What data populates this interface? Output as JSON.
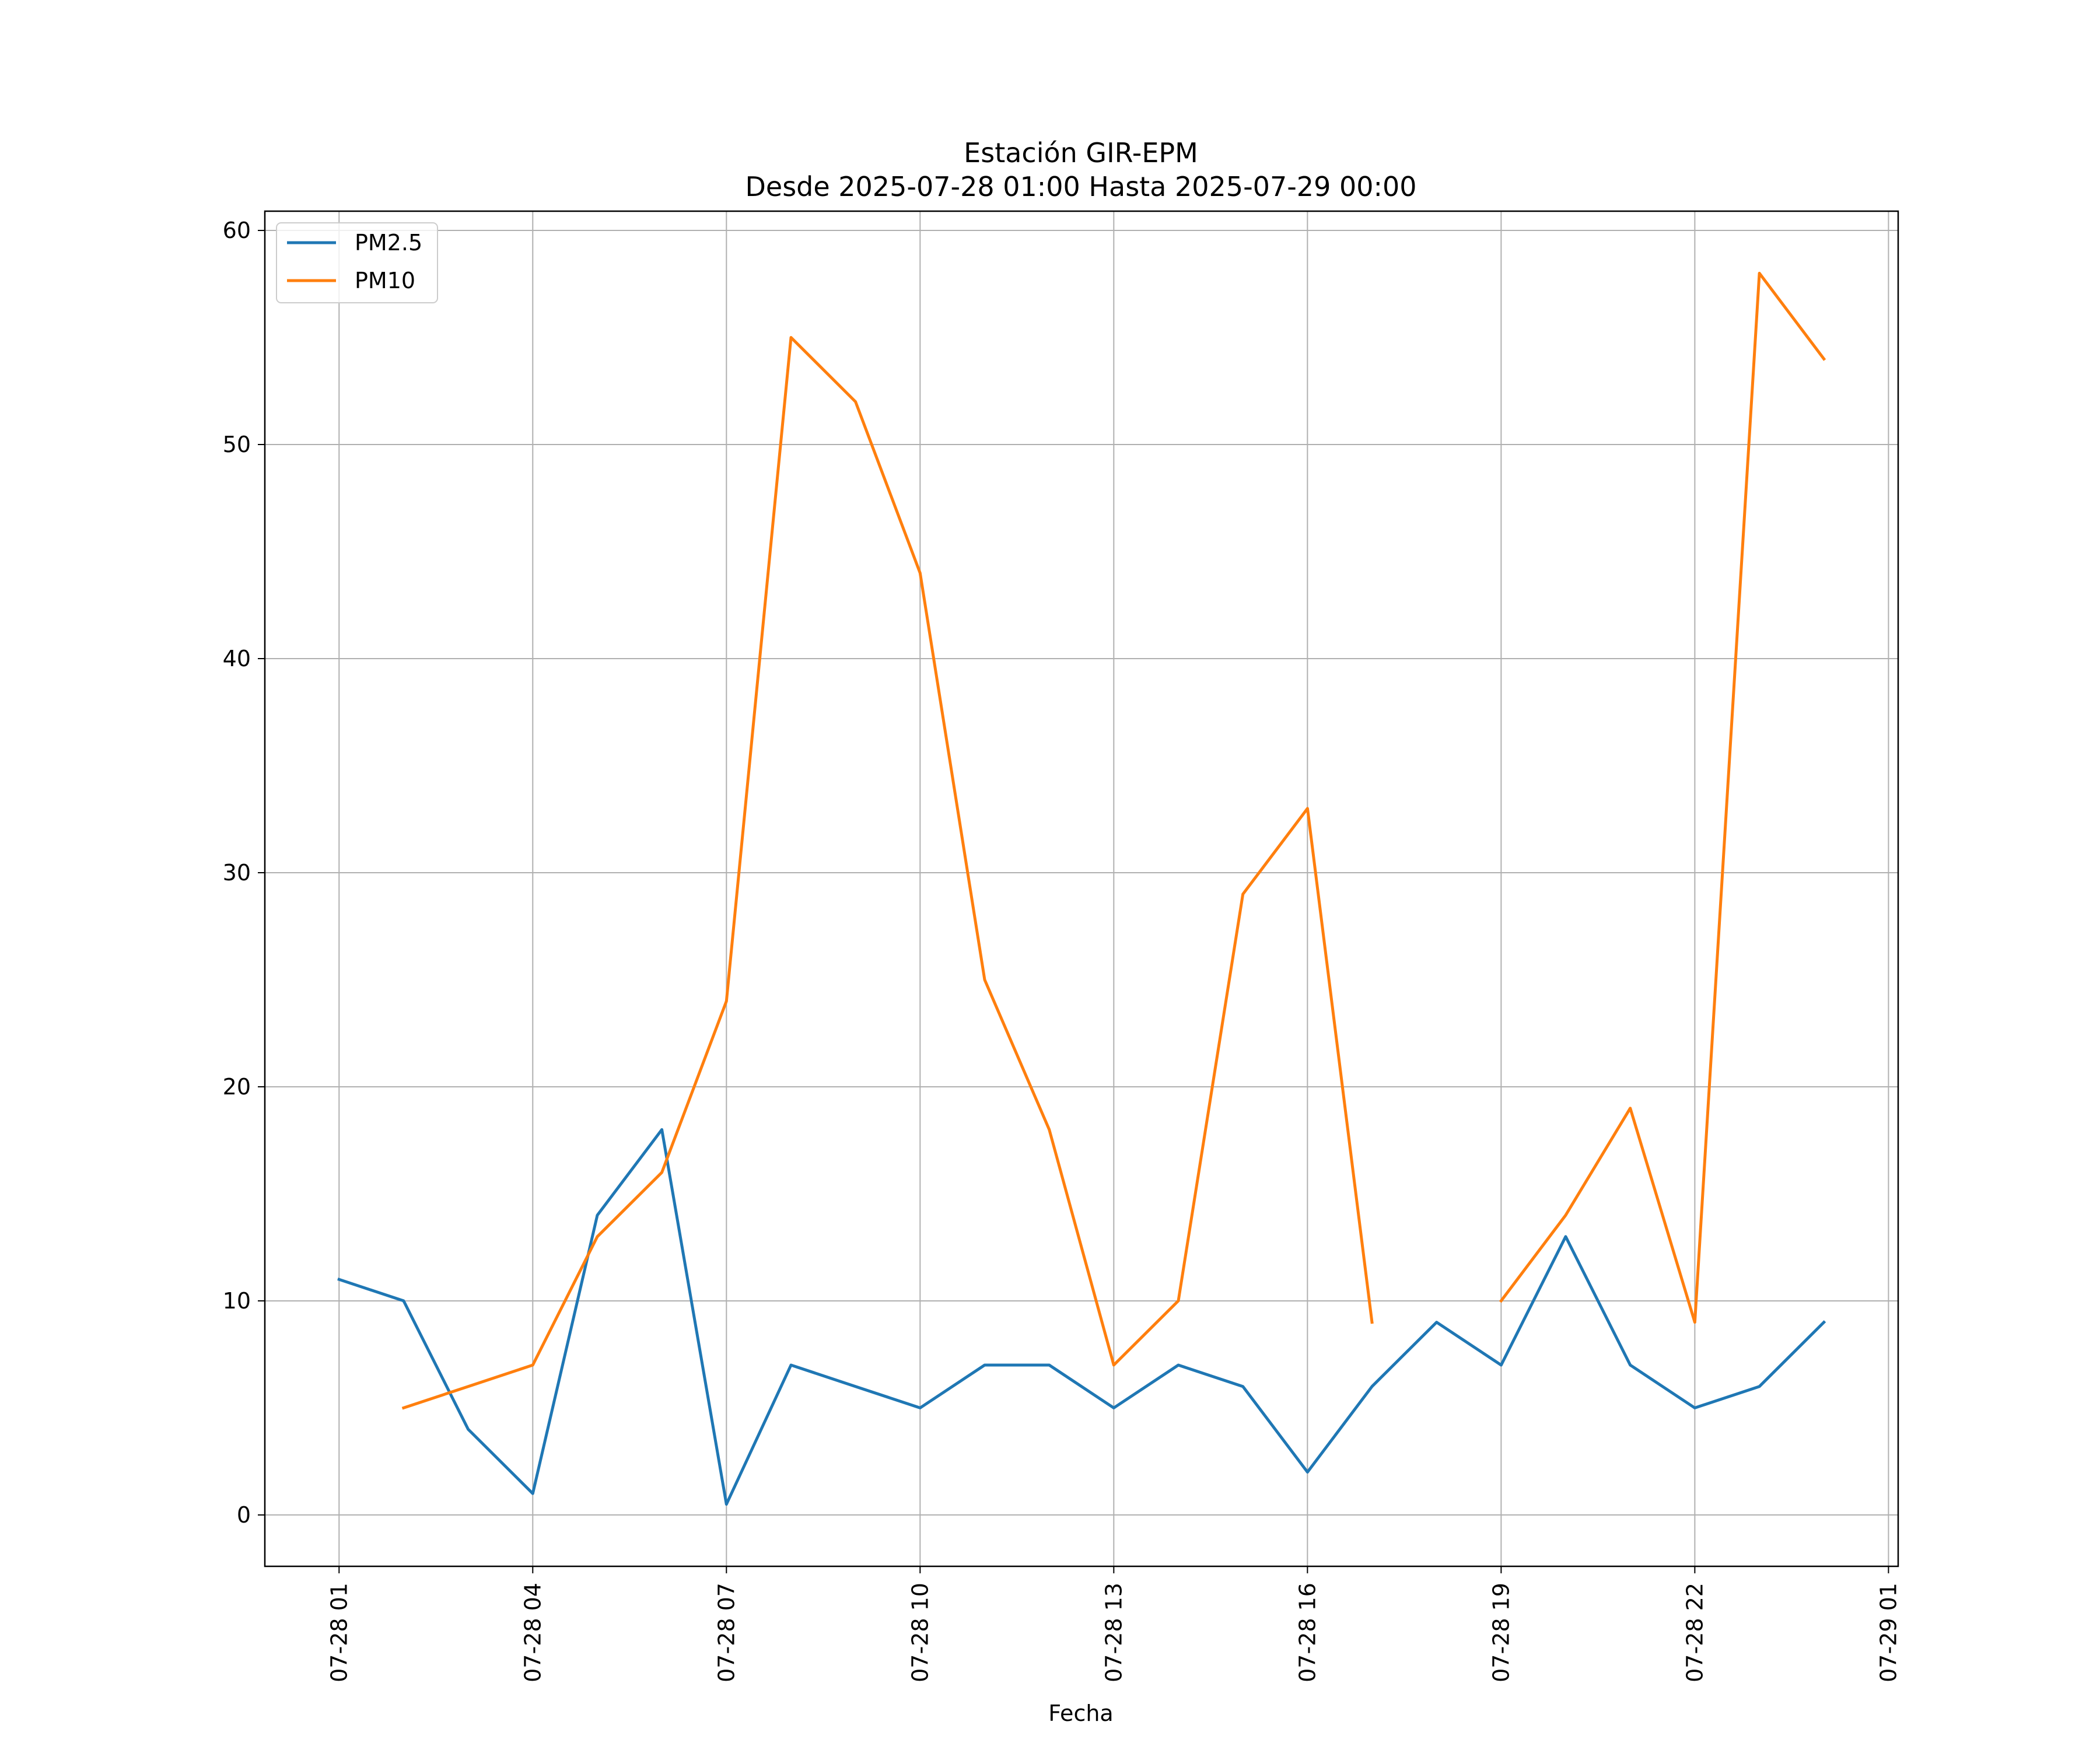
{
  "chart_data": {
    "type": "line",
    "title": "Estación GIR-EPM",
    "subtitle": "Desde 2025-07-28 01:00 Hasta 2025-07-29 00:00",
    "xlabel": "Fecha",
    "ylabel": "",
    "ylim": [
      -2.4,
      60.9
    ],
    "xlim": [
      "2025-07-27 23:51",
      "2025-07-29 01:09"
    ],
    "grid": true,
    "legend_position": "upper-left",
    "x": [
      "07-28 01:00",
      "07-28 02:00",
      "07-28 03:00",
      "07-28 04:00",
      "07-28 05:00",
      "07-28 06:00",
      "07-28 07:00",
      "07-28 08:00",
      "07-28 09:00",
      "07-28 10:00",
      "07-28 11:00",
      "07-28 12:00",
      "07-28 13:00",
      "07-28 14:00",
      "07-28 15:00",
      "07-28 16:00",
      "07-28 17:00",
      "07-28 18:00",
      "07-28 19:00",
      "07-28 20:00",
      "07-28 21:00",
      "07-28 22:00",
      "07-28 23:00",
      "07-29 00:00"
    ],
    "x_ticks": [
      {
        "label": "07-28 01",
        "value": "2025-07-28 01:00"
      },
      {
        "label": "07-28 04",
        "value": "2025-07-28 04:00"
      },
      {
        "label": "07-28 07",
        "value": "2025-07-28 07:00"
      },
      {
        "label": "07-28 10",
        "value": "2025-07-28 10:00"
      },
      {
        "label": "07-28 13",
        "value": "2025-07-28 13:00"
      },
      {
        "label": "07-28 16",
        "value": "2025-07-28 16:00"
      },
      {
        "label": "07-28 19",
        "value": "2025-07-28 19:00"
      },
      {
        "label": "07-28 22",
        "value": "2025-07-28 22:00"
      },
      {
        "label": "07-29 01",
        "value": "2025-07-29 01:00"
      }
    ],
    "y_ticks": [
      0,
      10,
      20,
      30,
      40,
      50,
      60
    ],
    "series": [
      {
        "name": "PM2.5",
        "color": "#1f77b4",
        "values": [
          11,
          10,
          4,
          1,
          14,
          18,
          0.5,
          7,
          6,
          5,
          7,
          7,
          5,
          7,
          6,
          2,
          6,
          9,
          7,
          13,
          7,
          5,
          6,
          9
        ]
      },
      {
        "name": "PM10",
        "color": "#ff7f0e",
        "values": [
          null,
          5,
          6,
          7,
          13,
          16,
          24,
          55,
          52,
          44,
          25,
          18,
          7,
          10,
          29,
          33,
          9,
          null,
          10,
          14,
          19,
          9,
          58,
          54
        ]
      }
    ]
  }
}
